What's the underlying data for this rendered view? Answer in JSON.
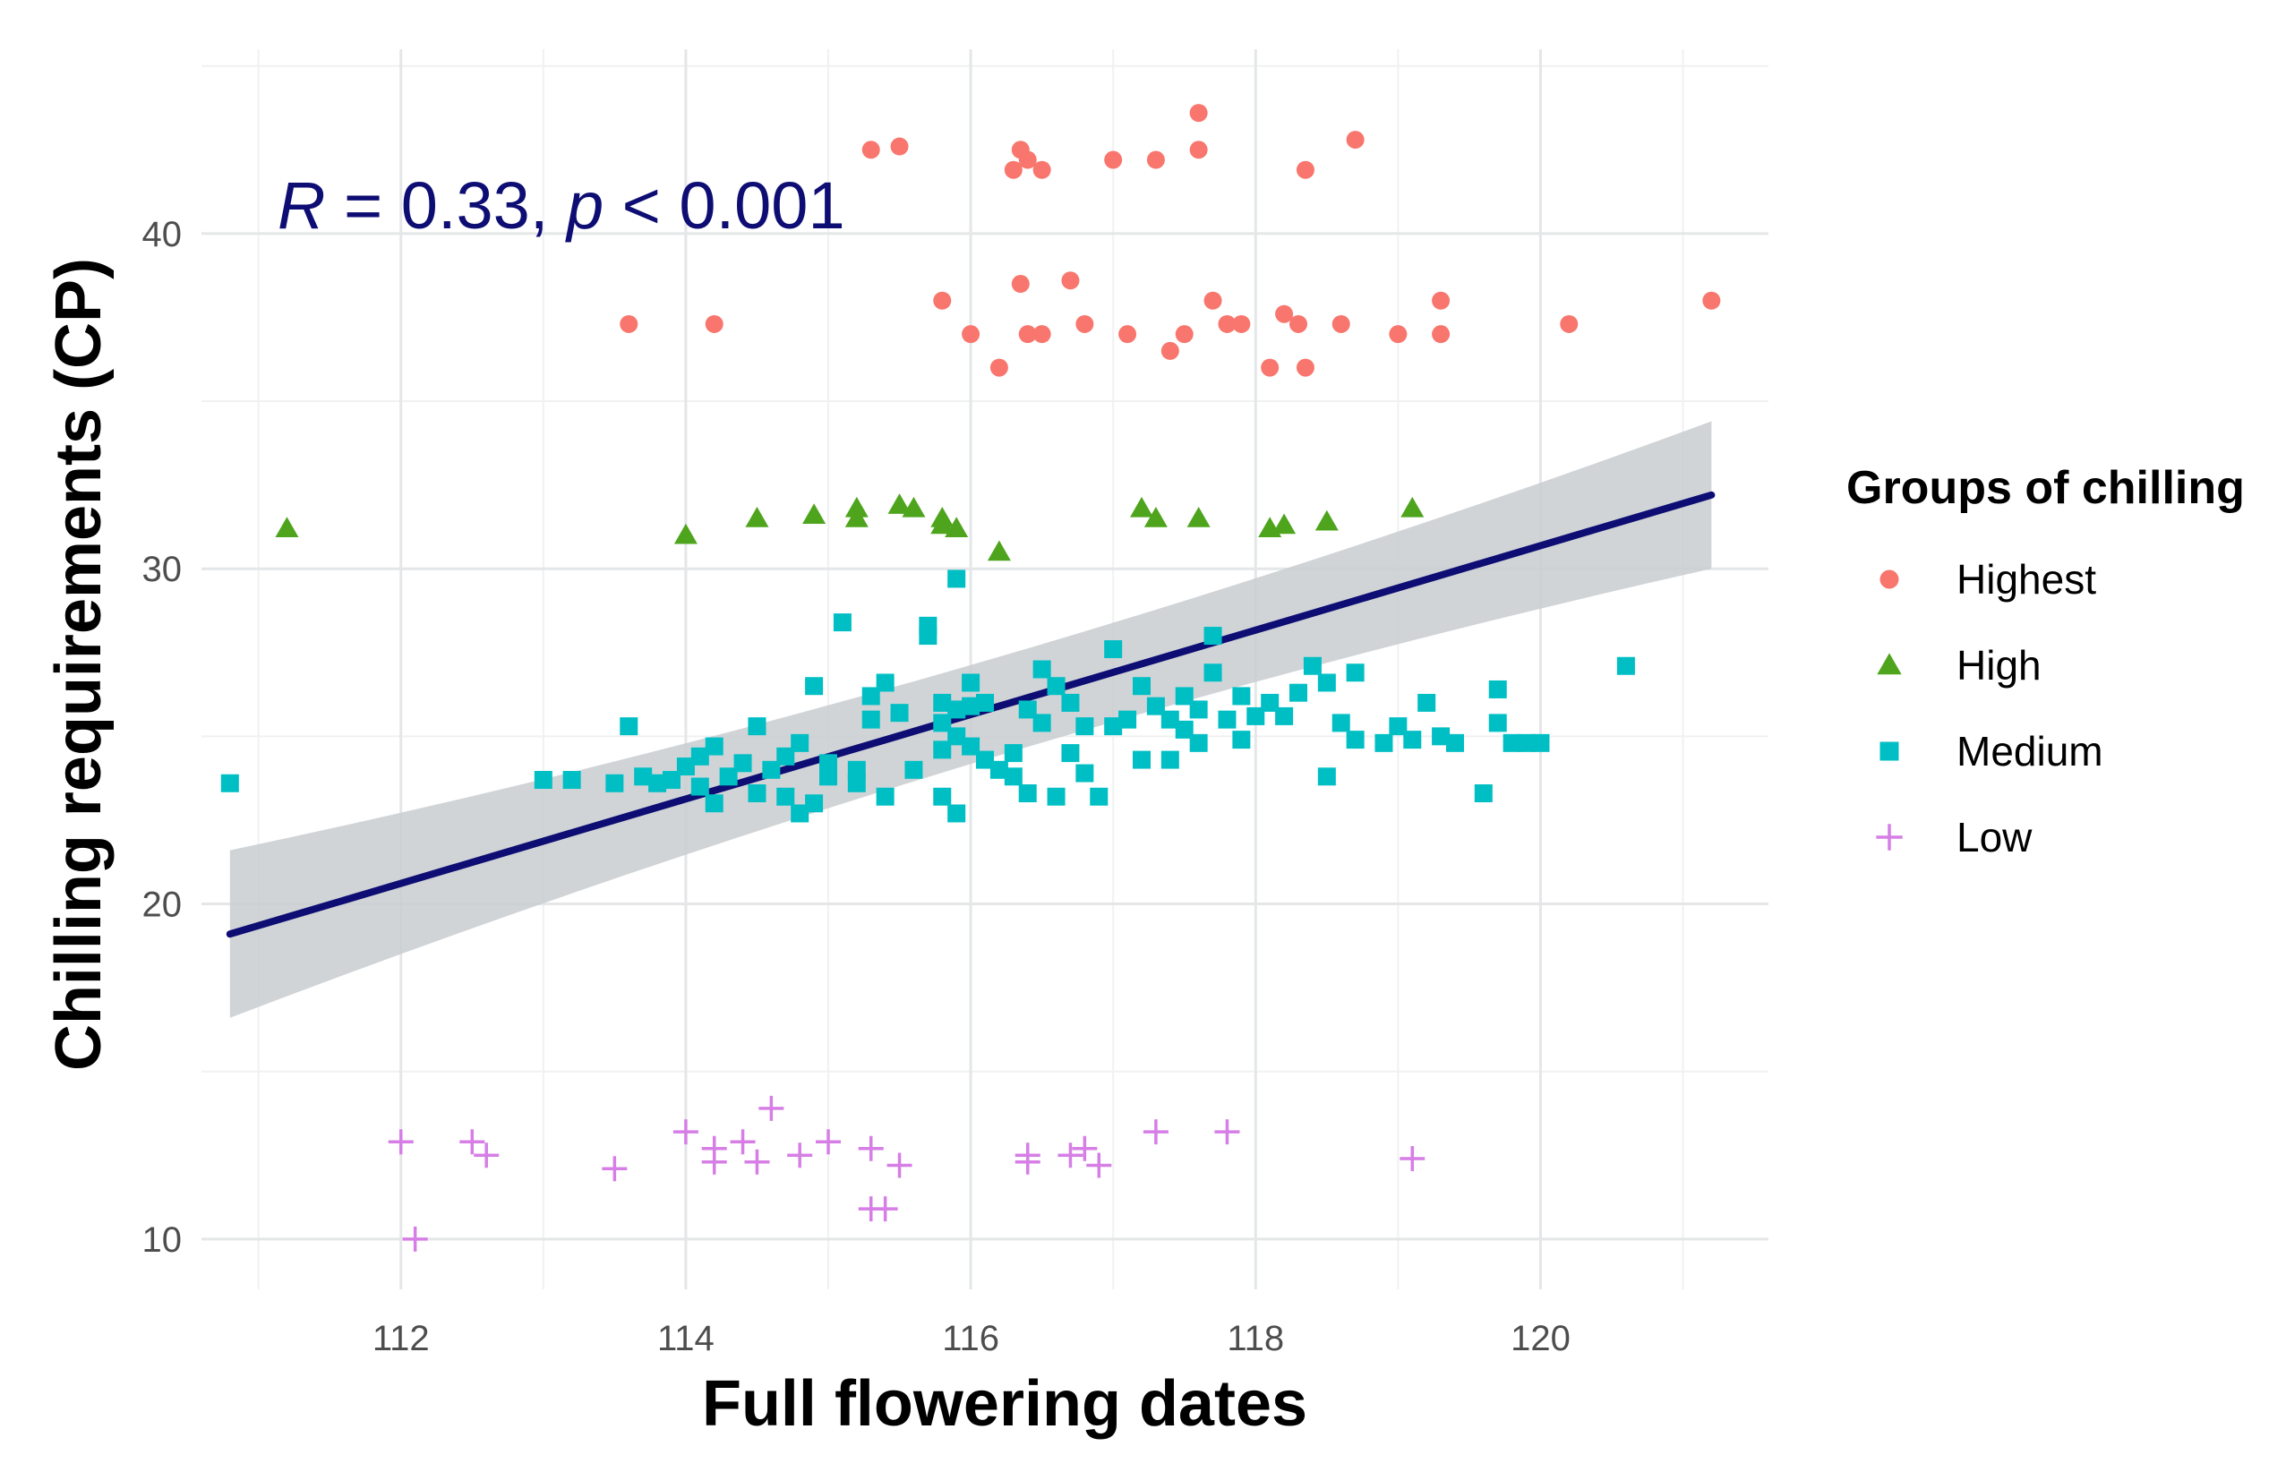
{
  "chart_data": {
    "type": "scatter",
    "title": "",
    "xlabel": "Full flowering dates",
    "ylabel": "Chilling requirements (CP)",
    "xlim": [
      110.6,
      121.6
    ],
    "ylim": [
      8.5,
      45.5
    ],
    "xticks": [
      112,
      114,
      116,
      118,
      120
    ],
    "yticks": [
      10,
      20,
      30,
      40
    ],
    "grid": true,
    "annotation": {
      "r_symbol": "R",
      "r_text": " = 0.33, ",
      "p_symbol": "p",
      "p_text": " < 0.001",
      "color": "#0d0d73"
    },
    "legend": {
      "title": "Groups of chilling",
      "position": "right"
    },
    "regression": {
      "x": [
        110.8,
        121.2
      ],
      "y": [
        19.1,
        32.2
      ],
      "ci_lower": [
        16.6,
        30.0
      ],
      "ci_upper": [
        21.6,
        34.4
      ],
      "color": "#0d0d73",
      "ribbon_color": "#c8ccd0"
    },
    "series": [
      {
        "name": "Highest",
        "marker": "circle",
        "color": "#f8766d",
        "points": [
          [
            113.6,
            37.3
          ],
          [
            114.2,
            37.3
          ],
          [
            115.3,
            42.5
          ],
          [
            115.5,
            42.6
          ],
          [
            115.8,
            38.0
          ],
          [
            116.0,
            37.0
          ],
          [
            116.2,
            36.0
          ],
          [
            116.3,
            41.9
          ],
          [
            116.35,
            42.5
          ],
          [
            116.4,
            42.2
          ],
          [
            116.35,
            38.5
          ],
          [
            116.4,
            37.0
          ],
          [
            116.5,
            41.9
          ],
          [
            116.5,
            37.0
          ],
          [
            116.7,
            38.6
          ],
          [
            116.8,
            37.3
          ],
          [
            117.0,
            42.2
          ],
          [
            117.1,
            37.0
          ],
          [
            117.3,
            42.2
          ],
          [
            117.4,
            36.5
          ],
          [
            117.5,
            37.0
          ],
          [
            117.6,
            43.6
          ],
          [
            117.6,
            42.5
          ],
          [
            117.7,
            38.0
          ],
          [
            117.8,
            37.3
          ],
          [
            117.9,
            37.3
          ],
          [
            118.1,
            36.0
          ],
          [
            118.2,
            37.6
          ],
          [
            118.3,
            37.3
          ],
          [
            118.35,
            36.0
          ],
          [
            118.35,
            41.9
          ],
          [
            118.6,
            37.3
          ],
          [
            118.7,
            42.8
          ],
          [
            119.0,
            37.0
          ],
          [
            119.3,
            38.0
          ],
          [
            119.3,
            37.0
          ],
          [
            120.2,
            37.3
          ],
          [
            121.2,
            38.0
          ]
        ]
      },
      {
        "name": "High",
        "marker": "triangle",
        "color": "#4ea51d",
        "points": [
          [
            111.2,
            31.2
          ],
          [
            114.0,
            31.0
          ],
          [
            114.5,
            31.5
          ],
          [
            114.9,
            31.6
          ],
          [
            115.2,
            31.8
          ],
          [
            115.2,
            31.5
          ],
          [
            115.5,
            31.9
          ],
          [
            115.6,
            31.8
          ],
          [
            115.8,
            31.5
          ],
          [
            115.8,
            31.3
          ],
          [
            115.9,
            31.2
          ],
          [
            116.2,
            30.5
          ],
          [
            117.2,
            31.8
          ],
          [
            117.3,
            31.5
          ],
          [
            117.6,
            31.5
          ],
          [
            118.1,
            31.2
          ],
          [
            118.2,
            31.3
          ],
          [
            118.5,
            31.4
          ],
          [
            119.1,
            31.8
          ]
        ]
      },
      {
        "name": "Medium",
        "marker": "square",
        "color": "#00bfc4",
        "points": [
          [
            110.8,
            23.6
          ],
          [
            113.0,
            23.7
          ],
          [
            113.2,
            23.7
          ],
          [
            113.5,
            23.6
          ],
          [
            113.6,
            25.3
          ],
          [
            113.7,
            23.8
          ],
          [
            113.8,
            23.6
          ],
          [
            113.9,
            23.7
          ],
          [
            114.0,
            24.1
          ],
          [
            114.1,
            23.5
          ],
          [
            114.1,
            24.4
          ],
          [
            114.2,
            23.0
          ],
          [
            114.2,
            24.7
          ],
          [
            114.3,
            23.8
          ],
          [
            114.4,
            24.2
          ],
          [
            114.5,
            25.3
          ],
          [
            114.5,
            23.3
          ],
          [
            114.6,
            24.0
          ],
          [
            114.7,
            24.4
          ],
          [
            114.7,
            23.2
          ],
          [
            114.8,
            24.8
          ],
          [
            114.8,
            22.7
          ],
          [
            114.9,
            26.5
          ],
          [
            114.9,
            23.0
          ],
          [
            115.0,
            24.2
          ],
          [
            115.0,
            23.8
          ],
          [
            115.1,
            28.4
          ],
          [
            115.2,
            24.0
          ],
          [
            115.2,
            23.6
          ],
          [
            115.3,
            26.2
          ],
          [
            115.3,
            25.5
          ],
          [
            115.4,
            26.6
          ],
          [
            115.4,
            23.2
          ],
          [
            115.5,
            25.7
          ],
          [
            115.6,
            24.0
          ],
          [
            115.7,
            28.0
          ],
          [
            115.7,
            28.3
          ],
          [
            115.8,
            26.0
          ],
          [
            115.8,
            25.4
          ],
          [
            115.8,
            24.6
          ],
          [
            115.8,
            23.2
          ],
          [
            115.9,
            29.7
          ],
          [
            115.9,
            25.8
          ],
          [
            115.9,
            25.0
          ],
          [
            115.9,
            22.7
          ],
          [
            116.0,
            26.6
          ],
          [
            116.0,
            25.9
          ],
          [
            116.0,
            24.7
          ],
          [
            116.1,
            26.0
          ],
          [
            116.1,
            24.3
          ],
          [
            116.2,
            24.0
          ],
          [
            116.3,
            24.5
          ],
          [
            116.3,
            23.8
          ],
          [
            116.4,
            25.8
          ],
          [
            116.4,
            23.3
          ],
          [
            116.5,
            27.0
          ],
          [
            116.5,
            25.4
          ],
          [
            116.6,
            26.5
          ],
          [
            116.6,
            23.2
          ],
          [
            116.7,
            26.0
          ],
          [
            116.7,
            24.5
          ],
          [
            116.8,
            25.3
          ],
          [
            116.8,
            23.9
          ],
          [
            116.9,
            23.2
          ],
          [
            117.0,
            27.6
          ],
          [
            117.0,
            25.3
          ],
          [
            117.1,
            25.5
          ],
          [
            117.2,
            26.5
          ],
          [
            117.2,
            24.3
          ],
          [
            117.3,
            25.9
          ],
          [
            117.4,
            25.5
          ],
          [
            117.4,
            24.3
          ],
          [
            117.5,
            26.2
          ],
          [
            117.5,
            25.2
          ],
          [
            117.6,
            25.8
          ],
          [
            117.6,
            24.8
          ],
          [
            117.7,
            28.0
          ],
          [
            117.7,
            26.9
          ],
          [
            117.8,
            25.5
          ],
          [
            117.9,
            26.2
          ],
          [
            117.9,
            24.9
          ],
          [
            118.0,
            25.6
          ],
          [
            118.1,
            26.0
          ],
          [
            118.2,
            25.6
          ],
          [
            118.3,
            26.3
          ],
          [
            118.4,
            27.1
          ],
          [
            118.5,
            26.6
          ],
          [
            118.5,
            23.8
          ],
          [
            118.6,
            25.4
          ],
          [
            118.7,
            26.9
          ],
          [
            118.7,
            24.9
          ],
          [
            118.9,
            24.8
          ],
          [
            119.0,
            25.3
          ],
          [
            119.1,
            24.9
          ],
          [
            119.2,
            26.0
          ],
          [
            119.3,
            25.0
          ],
          [
            119.4,
            24.8
          ],
          [
            119.6,
            23.3
          ],
          [
            119.7,
            26.4
          ],
          [
            119.7,
            25.4
          ],
          [
            119.8,
            24.8
          ],
          [
            119.9,
            24.8
          ],
          [
            120.0,
            24.8
          ],
          [
            120.6,
            27.1
          ]
        ]
      },
      {
        "name": "Low",
        "marker": "cross",
        "color": "#d67ee6",
        "points": [
          [
            112.0,
            12.9
          ],
          [
            112.1,
            10.0
          ],
          [
            112.5,
            12.9
          ],
          [
            112.6,
            12.5
          ],
          [
            113.5,
            12.1
          ],
          [
            114.0,
            13.2
          ],
          [
            114.2,
            12.7
          ],
          [
            114.2,
            12.3
          ],
          [
            114.4,
            12.9
          ],
          [
            114.5,
            12.3
          ],
          [
            114.6,
            13.9
          ],
          [
            114.8,
            12.5
          ],
          [
            115.0,
            12.9
          ],
          [
            115.3,
            12.7
          ],
          [
            115.3,
            10.9
          ],
          [
            115.4,
            10.9
          ],
          [
            115.5,
            12.2
          ],
          [
            116.4,
            12.3
          ],
          [
            116.4,
            12.5
          ],
          [
            116.7,
            12.5
          ],
          [
            116.8,
            12.7
          ],
          [
            116.9,
            12.2
          ],
          [
            117.3,
            13.2
          ],
          [
            117.8,
            13.2
          ],
          [
            119.1,
            12.4
          ]
        ]
      }
    ]
  }
}
